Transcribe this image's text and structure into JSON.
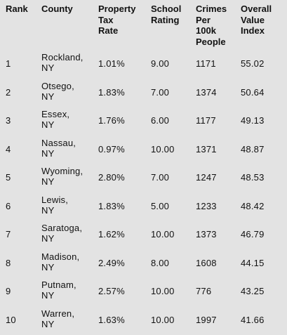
{
  "table": {
    "headers": [
      "Rank",
      "County",
      "Property\nTax\nRate",
      "School\nRating",
      "Crimes\nPer\n100k\nPeople",
      "Overall\nValue\nIndex"
    ],
    "rows": [
      {
        "rank": "1",
        "county": "Rockland,\nNY",
        "tax": "1.01%",
        "school": "9.00",
        "crimes": "1171",
        "value": "55.02"
      },
      {
        "rank": "2",
        "county": "Otsego,\nNY",
        "tax": "1.83%",
        "school": "7.00",
        "crimes": "1374",
        "value": "50.64"
      },
      {
        "rank": "3",
        "county": "Essex,\nNY",
        "tax": "1.76%",
        "school": "6.00",
        "crimes": "1177",
        "value": "49.13"
      },
      {
        "rank": "4",
        "county": "Nassau,\nNY",
        "tax": "0.97%",
        "school": "10.00",
        "crimes": "1371",
        "value": "48.87"
      },
      {
        "rank": "5",
        "county": "Wyoming,\nNY",
        "tax": "2.80%",
        "school": "7.00",
        "crimes": "1247",
        "value": "48.53"
      },
      {
        "rank": "6",
        "county": "Lewis,\nNY",
        "tax": "1.83%",
        "school": "5.00",
        "crimes": "1233",
        "value": "48.42"
      },
      {
        "rank": "7",
        "county": "Saratoga,\nNY",
        "tax": "1.62%",
        "school": "10.00",
        "crimes": "1373",
        "value": "46.79"
      },
      {
        "rank": "8",
        "county": "Madison,\nNY",
        "tax": "2.49%",
        "school": "8.00",
        "crimes": "1608",
        "value": "44.15"
      },
      {
        "rank": "9",
        "county": "Putnam,\nNY",
        "tax": "2.57%",
        "school": "10.00",
        "crimes": "776",
        "value": "43.25"
      },
      {
        "rank": "10",
        "county": "Warren,\nNY",
        "tax": "1.63%",
        "school": "10.00",
        "crimes": "1997",
        "value": "41.66"
      }
    ]
  }
}
